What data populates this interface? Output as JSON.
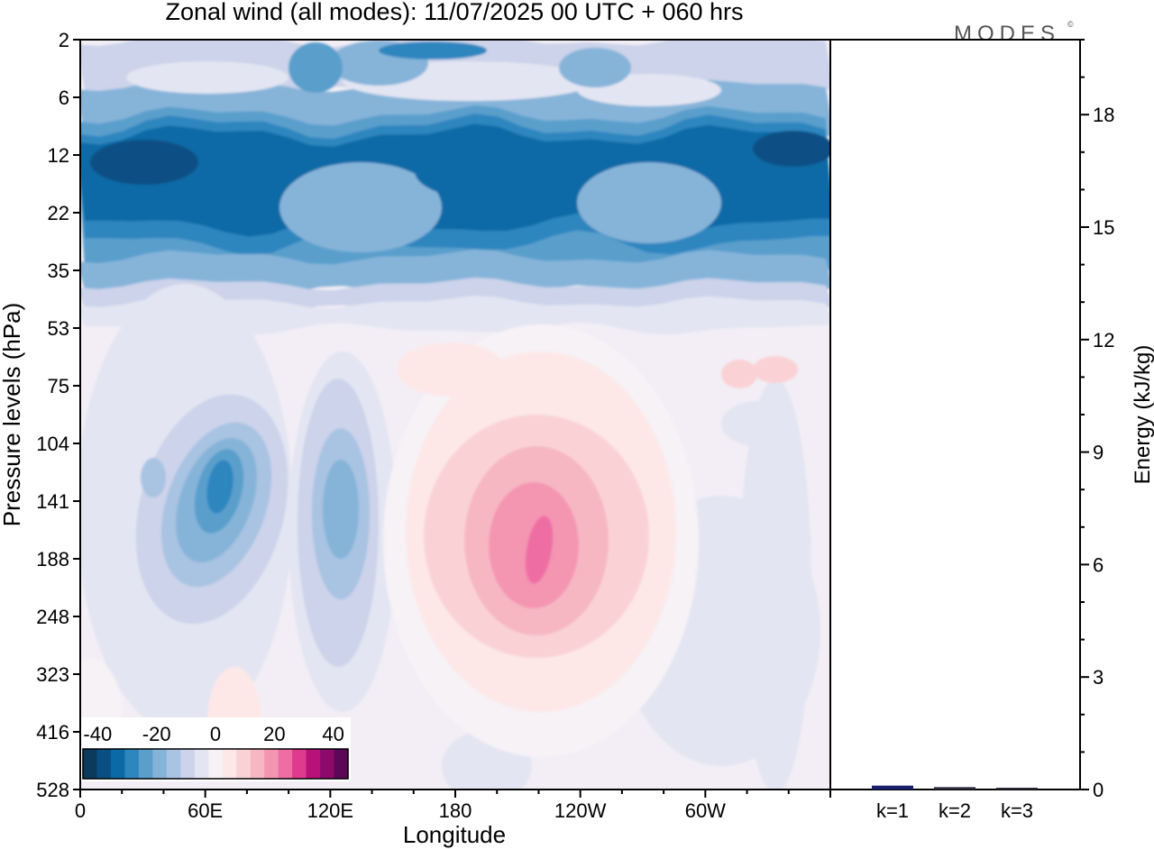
{
  "chart_data": {
    "type": "contour",
    "title": "Zonal wind (all modes):  11/07/2025  00 UTC  + 060 hrs",
    "logo": "MODES",
    "logo_mark": "©",
    "xlabel": "Longitude",
    "ylabel": "Pressure levels (hPa)",
    "x_ticks": [
      "0",
      "60E",
      "120E",
      "180",
      "120W",
      "60W"
    ],
    "y_ticks": [
      "2",
      "6",
      "12",
      "22",
      "35",
      "53",
      "75",
      "104",
      "141",
      "188",
      "248",
      "323",
      "416",
      "528"
    ],
    "colorbar": {
      "ticks": [
        "-40",
        "-20",
        "0",
        "20",
        "40"
      ],
      "range": [
        -45,
        45
      ],
      "step": 5,
      "colors": [
        "#0b3a5c",
        "#0a4f84",
        "#0b6aa6",
        "#2e86bf",
        "#5a9fcc",
        "#86b4d9",
        "#a9c3e2",
        "#ccd3ea",
        "#e3e5f2",
        "#f6f2f6",
        "#fde8e7",
        "#fad2d6",
        "#f6b7c3",
        "#f495b2",
        "#ee6ea4",
        "#de3a8e",
        "#b9117a",
        "#8c0a6c",
        "#5c0857"
      ]
    },
    "energy_panel": {
      "ylabel": "Energy (kJ/kg)",
      "y_ticks": [
        "0",
        "3",
        "6",
        "9",
        "12",
        "15",
        "18"
      ],
      "ylim": [
        0,
        20
      ],
      "categories": [
        "k=1",
        "k=2",
        "k=3"
      ],
      "values": [
        0.08,
        0.04,
        0.02
      ],
      "bar_colors": [
        "#1a1f6e",
        "#2a2a3a",
        "#2a2a3a"
      ]
    },
    "features": [
      {
        "name": "stratospheric easterly jet core",
        "level_hPa": [
          10,
          22
        ],
        "min_value": -40
      },
      {
        "name": "upper tropospheric easterly core",
        "lon": "70E",
        "level_hPa": 141,
        "min_value": -30
      },
      {
        "name": "upper tropospheric easterly core",
        "lon": "125E",
        "level_hPa": 141,
        "min_value": -20
      },
      {
        "name": "upper tropospheric westerly core",
        "lon": "150W",
        "level_hPa": 175,
        "max_value": 20
      }
    ]
  }
}
